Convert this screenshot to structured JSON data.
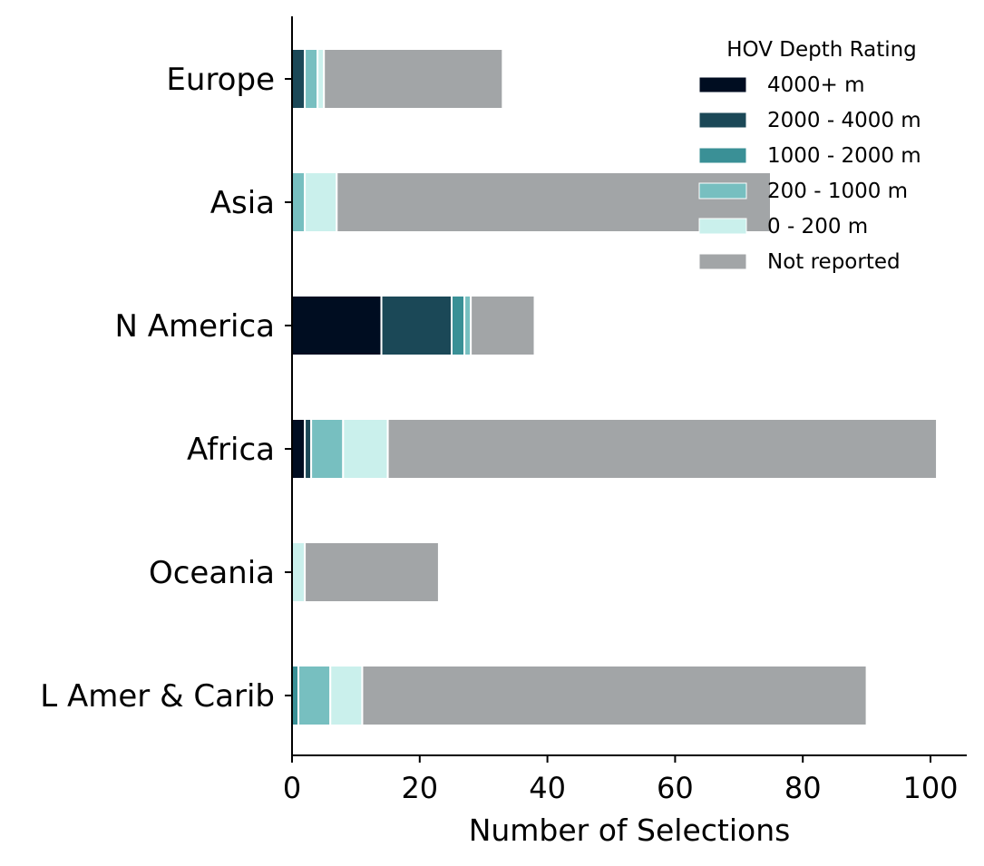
{
  "chart_data": {
    "type": "bar",
    "orientation": "horizontal",
    "stacked": true,
    "title": "",
    "xlabel": "Number of Selections",
    "ylabel": "",
    "xlim": [
      0,
      106
    ],
    "xticks": [
      0,
      20,
      40,
      60,
      80,
      100
    ],
    "grid": false,
    "legend_title": "HOV Depth Rating",
    "legend_position": "top-right",
    "categories": [
      "Europe",
      "Asia",
      "N America",
      "Africa",
      "Oceania",
      "L Amer & Carib"
    ],
    "series": [
      {
        "name": "4000+ m",
        "color": "#000d21",
        "values": [
          0,
          0,
          14,
          2,
          0,
          0
        ]
      },
      {
        "name": "2000 - 4000 m",
        "color": "#1b4857",
        "values": [
          2,
          0,
          11,
          1,
          0,
          0
        ]
      },
      {
        "name": "1000 - 2000 m",
        "color": "#3a9096",
        "values": [
          0,
          0,
          2,
          0,
          0,
          1
        ]
      },
      {
        "name": "200 - 1000 m",
        "color": "#77bfc0",
        "values": [
          2,
          2,
          1,
          5,
          0,
          5
        ]
      },
      {
        "name": "0 - 200 m",
        "color": "#caf0ec",
        "values": [
          1,
          5,
          0,
          7,
          2,
          5
        ]
      },
      {
        "name": "Not reported",
        "color": "#a2a5a7",
        "values": [
          28,
          68,
          10,
          86,
          21,
          79
        ]
      }
    ]
  }
}
